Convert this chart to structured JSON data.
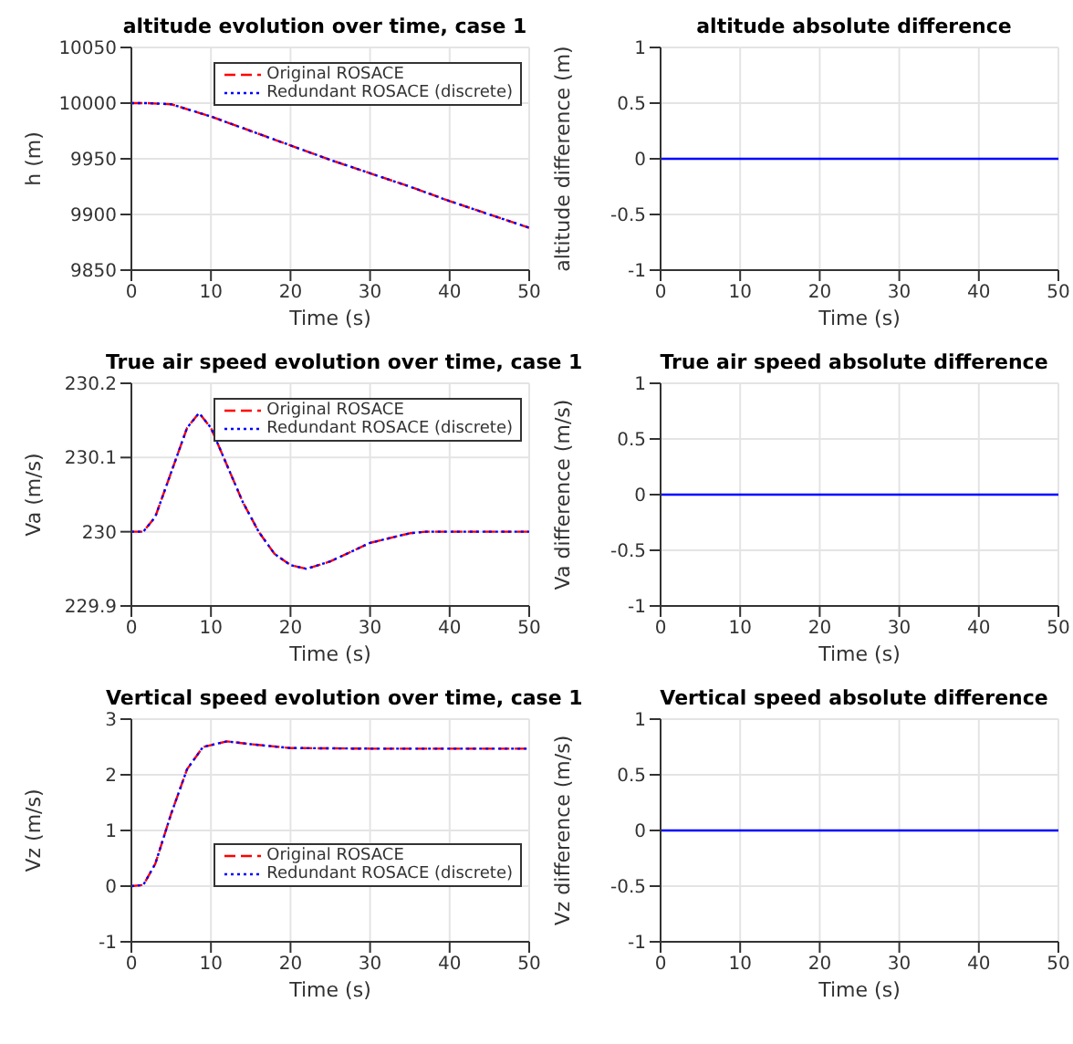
{
  "chart_data": [
    {
      "type": "line",
      "title": "altitude evolution over time, case 1",
      "xlabel": "Time (s)",
      "ylabel": "h (m)",
      "xlim": [
        0,
        50
      ],
      "xticks": [
        0,
        10,
        20,
        30,
        40,
        50
      ],
      "ylim": [
        9850,
        10050
      ],
      "yticks": [
        9850,
        9900,
        9950,
        10000,
        10050
      ],
      "grid": true,
      "legend": "top right",
      "x": [
        0,
        2,
        5,
        10,
        15,
        20,
        25,
        30,
        35,
        40,
        45,
        50
      ],
      "series": [
        {
          "name": "Original ROSACE",
          "color": "#ff0000",
          "line_style": "dashed",
          "values": [
            10000,
            10000,
            9999,
            9988,
            9975,
            9962,
            9949,
            9937,
            9925,
            9912,
            9900,
            9888
          ]
        },
        {
          "name": "Redundant ROSACE (discrete)",
          "color": "#0000ff",
          "line_style": "dotted",
          "values": [
            10000,
            10000,
            9999,
            9988,
            9975,
            9962,
            9949,
            9937,
            9925,
            9912,
            9900,
            9888
          ]
        }
      ]
    },
    {
      "type": "line",
      "title": "altitude absolute difference",
      "xlabel": "Time (s)",
      "ylabel": "altitude difference (m)",
      "xlim": [
        0,
        50
      ],
      "xticks": [
        0,
        10,
        20,
        30,
        40,
        50
      ],
      "ylim": [
        -1,
        1
      ],
      "yticks": [
        -1,
        -0.5,
        0,
        0.5,
        1
      ],
      "grid": true,
      "line_style": "solid",
      "x": [
        0,
        50
      ],
      "series": [
        {
          "color": "#0000ff",
          "values": [
            0,
            0
          ]
        }
      ]
    },
    {
      "type": "line",
      "title": "True air speed evolution over time, case 1",
      "xlabel": "Time (s)",
      "ylabel": "Va (m/s)",
      "xlim": [
        0,
        50
      ],
      "xticks": [
        0,
        10,
        20,
        30,
        40,
        50
      ],
      "ylim": [
        229.9,
        230.2
      ],
      "yticks": [
        229.9,
        230,
        230.1,
        230.2
      ],
      "grid": true,
      "legend": "top right",
      "x": [
        0,
        1.5,
        3,
        5,
        7,
        8.5,
        10,
        12,
        14,
        16,
        18,
        20,
        22,
        25,
        30,
        35,
        37,
        40,
        50
      ],
      "series": [
        {
          "name": "Original ROSACE",
          "color": "#ff0000",
          "line_style": "dashed",
          "values": [
            230,
            230,
            230.02,
            230.08,
            230.14,
            230.16,
            230.14,
            230.09,
            230.04,
            230,
            229.97,
            229.955,
            229.95,
            229.96,
            229.985,
            229.998,
            230,
            230,
            230
          ]
        },
        {
          "name": "Redundant ROSACE (discrete)",
          "color": "#0000ff",
          "line_style": "dotted",
          "values": [
            230,
            230,
            230.02,
            230.08,
            230.14,
            230.16,
            230.14,
            230.09,
            230.04,
            230,
            229.97,
            229.955,
            229.95,
            229.96,
            229.985,
            229.998,
            230,
            230,
            230
          ]
        }
      ]
    },
    {
      "type": "line",
      "title": "True air speed absolute difference",
      "xlabel": "Time (s)",
      "ylabel": "Va difference (m/s)",
      "xlim": [
        0,
        50
      ],
      "xticks": [
        0,
        10,
        20,
        30,
        40,
        50
      ],
      "ylim": [
        -1,
        1
      ],
      "yticks": [
        -1,
        -0.5,
        0,
        0.5,
        1
      ],
      "grid": true,
      "line_style": "solid",
      "x": [
        0,
        50
      ],
      "series": [
        {
          "color": "#0000ff",
          "values": [
            0,
            0
          ]
        }
      ]
    },
    {
      "type": "line",
      "title": "Vertical speed evolution over time, case 1",
      "xlabel": "Time (s)",
      "ylabel": "Vz (m/s)",
      "xlim": [
        0,
        50
      ],
      "xticks": [
        0,
        10,
        20,
        30,
        40,
        50
      ],
      "ylim": [
        -1,
        3
      ],
      "yticks": [
        -1,
        0,
        1,
        2,
        3
      ],
      "grid": true,
      "legend": "right",
      "x": [
        0,
        1.5,
        3,
        5,
        7,
        9,
        12,
        15,
        20,
        30,
        50
      ],
      "series": [
        {
          "name": "Original ROSACE",
          "color": "#ff0000",
          "line_style": "dashed",
          "values": [
            0,
            0.02,
            0.4,
            1.3,
            2.1,
            2.5,
            2.6,
            2.55,
            2.48,
            2.47,
            2.47
          ]
        },
        {
          "name": "Redundant ROSACE (discrete)",
          "color": "#0000ff",
          "line_style": "dotted",
          "values": [
            0,
            0.02,
            0.4,
            1.3,
            2.1,
            2.5,
            2.6,
            2.55,
            2.48,
            2.47,
            2.47
          ]
        }
      ]
    },
    {
      "type": "line",
      "title": "Vertical speed absolute difference",
      "xlabel": "Time (s)",
      "ylabel": "Vz difference (m/s)",
      "xlim": [
        0,
        50
      ],
      "xticks": [
        0,
        10,
        20,
        30,
        40,
        50
      ],
      "ylim": [
        -1,
        1
      ],
      "yticks": [
        -1,
        -0.5,
        0,
        0.5,
        1
      ],
      "grid": true,
      "line_style": "solid",
      "x": [
        0,
        50
      ],
      "series": [
        {
          "color": "#0000ff",
          "values": [
            0,
            0
          ]
        }
      ]
    }
  ]
}
